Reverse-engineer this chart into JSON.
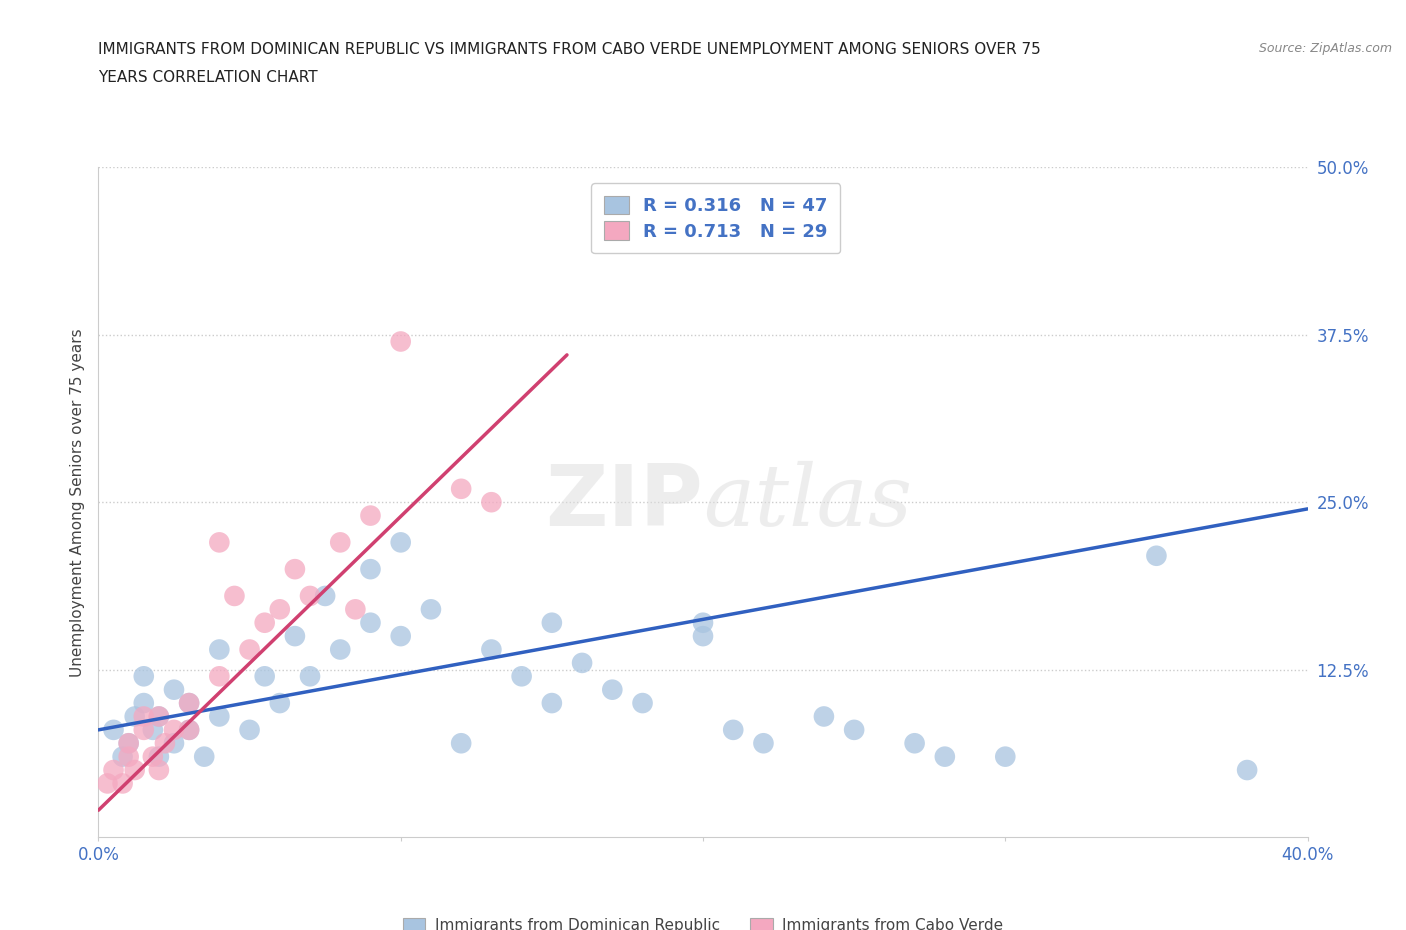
{
  "title_line1": "IMMIGRANTS FROM DOMINICAN REPUBLIC VS IMMIGRANTS FROM CABO VERDE UNEMPLOYMENT AMONG SENIORS OVER 75",
  "title_line2": "YEARS CORRELATION CHART",
  "source": "Source: ZipAtlas.com",
  "ylabel": "Unemployment Among Seniors over 75 years",
  "xlim": [
    0.0,
    0.4
  ],
  "ylim": [
    0.0,
    0.5
  ],
  "xticks": [
    0.0,
    0.1,
    0.2,
    0.3,
    0.4
  ],
  "xticklabels": [
    "0.0%",
    "",
    "",
    "",
    "40.0%"
  ],
  "yticks": [
    0.125,
    0.25,
    0.375,
    0.5
  ],
  "yticklabels": [
    "12.5%",
    "25.0%",
    "37.5%",
    "50.0%"
  ],
  "blue_R": 0.316,
  "blue_N": 47,
  "pink_R": 0.713,
  "pink_N": 29,
  "blue_color": "#a8c4e0",
  "pink_color": "#f4a8c0",
  "blue_line_color": "#3060c0",
  "pink_line_color": "#d04070",
  "watermark_zip": "ZIP",
  "watermark_atlas": "atlas",
  "blue_scatter_x": [
    0.005,
    0.008,
    0.01,
    0.012,
    0.015,
    0.015,
    0.018,
    0.02,
    0.02,
    0.025,
    0.025,
    0.03,
    0.03,
    0.035,
    0.04,
    0.04,
    0.05,
    0.055,
    0.06,
    0.065,
    0.07,
    0.075,
    0.08,
    0.09,
    0.09,
    0.1,
    0.1,
    0.11,
    0.12,
    0.13,
    0.14,
    0.15,
    0.15,
    0.16,
    0.17,
    0.18,
    0.2,
    0.2,
    0.21,
    0.22,
    0.24,
    0.25,
    0.27,
    0.28,
    0.3,
    0.35,
    0.38
  ],
  "blue_scatter_y": [
    0.08,
    0.06,
    0.07,
    0.09,
    0.1,
    0.12,
    0.08,
    0.06,
    0.09,
    0.07,
    0.11,
    0.08,
    0.1,
    0.06,
    0.09,
    0.14,
    0.08,
    0.12,
    0.1,
    0.15,
    0.12,
    0.18,
    0.14,
    0.16,
    0.2,
    0.15,
    0.22,
    0.17,
    0.07,
    0.14,
    0.12,
    0.16,
    0.1,
    0.13,
    0.11,
    0.1,
    0.15,
    0.16,
    0.08,
    0.07,
    0.09,
    0.08,
    0.07,
    0.06,
    0.06,
    0.21,
    0.05
  ],
  "pink_scatter_x": [
    0.003,
    0.005,
    0.008,
    0.01,
    0.01,
    0.012,
    0.015,
    0.015,
    0.018,
    0.02,
    0.02,
    0.022,
    0.025,
    0.03,
    0.03,
    0.04,
    0.04,
    0.045,
    0.05,
    0.055,
    0.06,
    0.065,
    0.07,
    0.08,
    0.085,
    0.09,
    0.1,
    0.12,
    0.13
  ],
  "pink_scatter_y": [
    0.04,
    0.05,
    0.04,
    0.06,
    0.07,
    0.05,
    0.08,
    0.09,
    0.06,
    0.05,
    0.09,
    0.07,
    0.08,
    0.08,
    0.1,
    0.12,
    0.22,
    0.18,
    0.14,
    0.16,
    0.17,
    0.2,
    0.18,
    0.22,
    0.17,
    0.24,
    0.37,
    0.26,
    0.25
  ],
  "blue_line_x0": 0.0,
  "blue_line_y0": 0.08,
  "blue_line_x1": 0.4,
  "blue_line_y1": 0.245,
  "pink_line_x0": 0.0,
  "pink_line_y0": 0.02,
  "pink_line_x1": 0.155,
  "pink_line_y1": 0.36,
  "legend_label_blue": "Immigrants from Dominican Republic",
  "legend_label_pink": "Immigrants from Cabo Verde"
}
